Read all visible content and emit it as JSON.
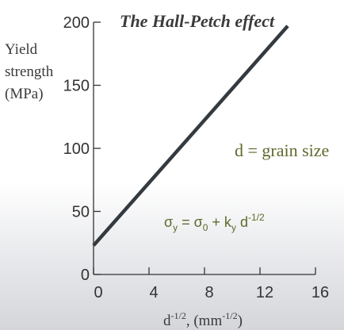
{
  "chart_data": {
    "type": "line",
    "title": "The Hall-Petch effect",
    "title_lines": [
      "The Hall-Petch effect"
    ],
    "ylabel_lines": [
      "Yield",
      "strength",
      "(MPa)"
    ],
    "xlabel": {
      "base": "d",
      "exp": "-1/2",
      "mid": ", (mm",
      "exp2": "-1/2",
      "end": ")"
    },
    "xlim": [
      0,
      16
    ],
    "ylim": [
      0,
      200
    ],
    "xticks": [
      0,
      4,
      8,
      12,
      16
    ],
    "yticks": [
      0,
      50,
      100,
      150,
      200
    ],
    "series": [
      {
        "x": [
          0,
          14
        ],
        "y": [
          23,
          197
        ],
        "color": "#333a40"
      }
    ],
    "annotations": {
      "grain": "d = grain size",
      "formula": {
        "sigma": "σ",
        "sub_y": "y",
        "eq": " = ",
        "sigma0": "σ",
        "sub0": "0",
        "plus": " + k",
        "sub_ky": "y",
        "d": " d",
        "exp": "-1/2"
      }
    },
    "grid": false,
    "colors": {
      "title": "#3a3a3a",
      "axis": "#333333",
      "annotation": "#5e6a2b"
    }
  }
}
